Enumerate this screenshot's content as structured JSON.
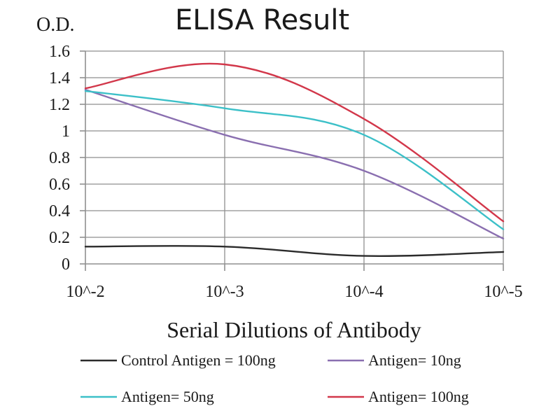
{
  "chart_data": {
    "type": "line",
    "title": "ELISA Result",
    "ylabel": "O.D.",
    "xlabel": "Serial Dilutions of Antibody",
    "categories": [
      "10^-2",
      "10^-3",
      "10^-4",
      "10^-5"
    ],
    "y_ticks": [
      "0",
      "0.2",
      "0.4",
      "0.6",
      "0.8",
      "1",
      "1.2",
      "1.4",
      "1.6"
    ],
    "ylim": [
      0,
      1.6
    ],
    "grid": true,
    "legend_position": "bottom",
    "series": [
      {
        "name": "Control Antigen = 100ng",
        "color": "#2b2b2b",
        "values": [
          0.13,
          0.13,
          0.06,
          0.09
        ]
      },
      {
        "name": "Antigen= 10ng",
        "color": "#8a6fb0",
        "values": [
          1.31,
          0.97,
          0.7,
          0.19
        ]
      },
      {
        "name": "Antigen= 50ng",
        "color": "#3cc0c8",
        "values": [
          1.3,
          1.17,
          0.97,
          0.26
        ]
      },
      {
        "name": "Antigen= 100ng",
        "color": "#d2374a",
        "values": [
          1.32,
          1.5,
          1.09,
          0.32
        ]
      }
    ]
  }
}
